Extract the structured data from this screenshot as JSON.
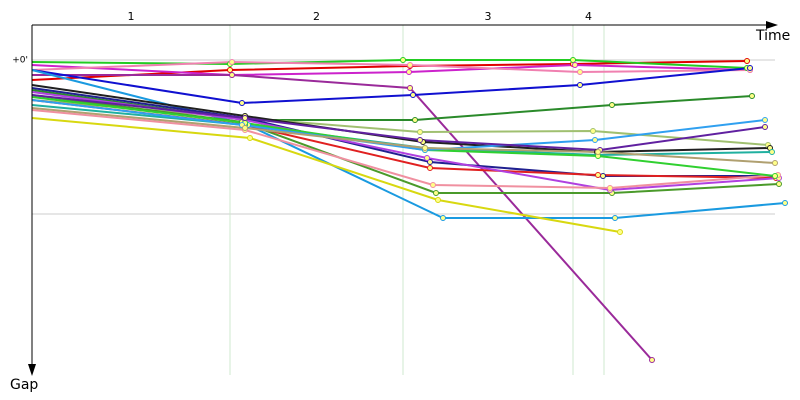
{
  "chart_data": {
    "type": "line",
    "x_label": "Time",
    "y_label": "Gap",
    "xlim": [
      0,
      743
    ],
    "ylim": [
      -3.5,
      31.5
    ],
    "yticks": [
      {
        "value": 0,
        "label": "+0'"
      }
    ],
    "sector_labels": [
      "1",
      "2",
      "3",
      "4"
    ],
    "sector_bounds": [
      198,
      371,
      541,
      572
    ],
    "series": [
      {
        "color": "#e00000",
        "x": [
          0,
          198,
          378,
          541,
          715
        ],
        "values": [
          2.0,
          1.0,
          0.6,
          0.4,
          0.1
        ]
      },
      {
        "color": "#22cc22",
        "x": [
          0,
          198,
          371,
          541,
          715
        ],
        "values": [
          0.2,
          0.4,
          0,
          0,
          0.8
        ]
      },
      {
        "color": "#cc22cc",
        "x": [
          0,
          200,
          377,
          543,
          718
        ],
        "values": [
          0.5,
          1.5,
          1.2,
          0.5,
          1.0
        ]
      },
      {
        "color": "#f080b0",
        "x": [
          0,
          200,
          378,
          548,
          718
        ],
        "values": [
          1.0,
          0.2,
          0.5,
          1.2,
          1.0
        ]
      },
      {
        "color": "#9a2a9a",
        "x": [
          0,
          200,
          378,
          620
        ],
        "values": [
          1.5,
          1.5,
          2.8,
          30.0
        ]
      },
      {
        "color": "#1010d0",
        "x": [
          0,
          210,
          381,
          548,
          718
        ],
        "values": [
          1.0,
          4.3,
          3.5,
          2.5,
          0.8
        ]
      },
      {
        "color": "#2a8a2a",
        "x": [
          0,
          213,
          383,
          580,
          720
        ],
        "values": [
          3.0,
          6.0,
          6.0,
          4.5,
          3.6
        ]
      },
      {
        "color": "#a0c070",
        "x": [
          0,
          213,
          388,
          561,
          736
        ],
        "values": [
          4.0,
          5.8,
          7.2,
          7.1,
          8.5
        ]
      },
      {
        "color": "#1a9ae0",
        "x": [
          0,
          216,
          411,
          583,
          753
        ],
        "values": [
          1.0,
          6.5,
          15.8,
          15.8,
          14.3
        ]
      },
      {
        "color": "#d8d810",
        "x": [
          0,
          218,
          406,
          588
        ],
        "values": [
          5.8,
          7.8,
          14.0,
          17.2
        ]
      },
      {
        "color": "#202020",
        "x": [
          0,
          213,
          391,
          565,
          738
        ],
        "values": [
          2.5,
          5.6,
          8.2,
          9.2,
          8.8
        ]
      },
      {
        "color": "#202090",
        "x": [
          0,
          213,
          398,
          571,
          745
        ],
        "values": [
          2.8,
          5.8,
          10.2,
          11.6,
          11.6
        ]
      },
      {
        "color": "#4a9a2a",
        "x": [
          0,
          210,
          404,
          580,
          747
        ],
        "values": [
          3.5,
          6.2,
          13.3,
          13.3,
          12.4
        ]
      },
      {
        "color": "#e02020",
        "x": [
          0,
          213,
          398,
          566,
          744
        ],
        "values": [
          4.0,
          6.5,
          10.8,
          11.5,
          11.8
        ]
      },
      {
        "color": "#b040e0",
        "x": [
          0,
          213,
          395,
          578,
          747
        ],
        "values": [
          3.2,
          6.0,
          9.8,
          13.0,
          11.8
        ]
      },
      {
        "color": "#20b0a0",
        "x": [
          0,
          213,
          393,
          566,
          740
        ],
        "values": [
          4.5,
          6.5,
          8.8,
          9.5,
          9.2
        ]
      },
      {
        "color": "#f090a0",
        "x": [
          0,
          213,
          401,
          578,
          746
        ],
        "values": [
          5.0,
          7.0,
          12.5,
          12.8,
          11.5
        ]
      },
      {
        "color": "#30d030",
        "x": [
          0,
          213,
          393,
          566,
          743
        ],
        "values": [
          3.7,
          6.3,
          9.0,
          9.6,
          11.6
        ]
      },
      {
        "color": "#30a0f0",
        "x": [
          0,
          210,
          393,
          563,
          733
        ],
        "values": [
          4.0,
          6.5,
          9.0,
          8.0,
          6.0
        ]
      },
      {
        "color": "#6020a0",
        "x": [
          0,
          213,
          388,
          568,
          733
        ],
        "values": [
          3.5,
          5.8,
          8.0,
          9.0,
          6.7
        ]
      },
      {
        "color": "#b0a070",
        "x": [
          0,
          213,
          393,
          566,
          743
        ],
        "values": [
          4.8,
          6.8,
          8.8,
          9.2,
          10.3
        ]
      }
    ]
  }
}
